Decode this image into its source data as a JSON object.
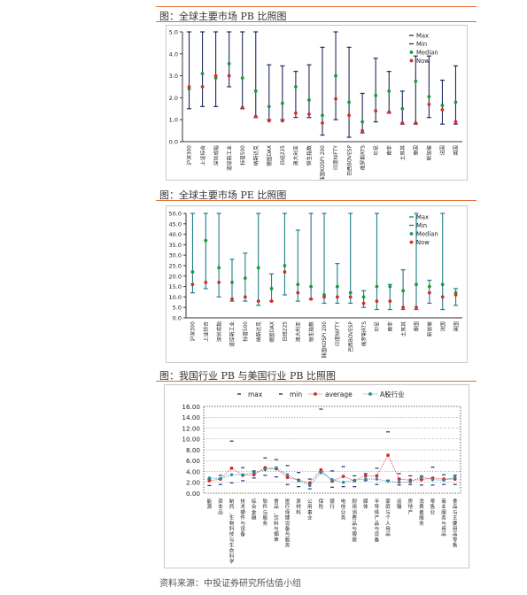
{
  "titles": {
    "pb_global": "图：全球主要市场 PB 比照图",
    "pe_global": "图：全球主要市场 PE 比照图",
    "cn_us_pb": "图：我国行业 PB 与美国行业 PB 比照图"
  },
  "source": "资料来源：中投证券研究所估值小组",
  "colors": {
    "accent_rule": "#e26b3a",
    "pb_whisker": "#1f2a5c",
    "pe_whisker": "#1f7d8c",
    "median": "#1a9a3a",
    "now": "#d42b2b",
    "ind_max_min": "#1f2a8c",
    "ind_average": "#d42b2b",
    "ind_a": "#2a8a9a"
  },
  "chart_data": [
    {
      "id": "pb",
      "type": "box",
      "title": "图：全球主要市场 PB 比照图",
      "categories": [
        "沪深300",
        "上证综合",
        "深圳成指",
        "道琼斯工业",
        "标普500",
        "纳斯达克",
        "德国DAX",
        "日经225",
        "澳大利亚",
        "恒生指数",
        "韩国KOSPI 200",
        "印度NIFTY",
        "巴西BOVESP",
        "俄罗斯RTS",
        "印尼",
        "南非",
        "土耳其",
        "泰国",
        "新加坡",
        "法国",
        "英国"
      ],
      "legend": [
        "Max",
        "Min",
        "Median",
        "Now"
      ],
      "ylim": [
        0,
        5
      ],
      "yticks": [
        "0.0",
        "1.0",
        "2.0",
        "3.0",
        "4.0",
        "5.0"
      ],
      "series": [
        {
          "name": "Max",
          "values": [
            5.0,
            5.0,
            5.0,
            5.0,
            5.0,
            5.0,
            3.5,
            3.45,
            3.2,
            3.5,
            4.3,
            5.0,
            4.3,
            2.2,
            3.8,
            3.2,
            2.3,
            3.9,
            3.9,
            2.8,
            3.45
          ]
        },
        {
          "name": "Min",
          "values": [
            1.5,
            1.6,
            1.6,
            2.5,
            1.5,
            1.1,
            1.0,
            1.0,
            1.1,
            1.1,
            0.3,
            1.0,
            0.2,
            0.4,
            0.9,
            1.3,
            0.8,
            0.8,
            1.1,
            0.8,
            0.8
          ]
        },
        {
          "name": "Median",
          "values": [
            2.4,
            3.1,
            2.9,
            3.55,
            2.9,
            2.3,
            1.6,
            1.75,
            2.5,
            1.9,
            1.2,
            3.0,
            1.8,
            0.9,
            2.1,
            2.3,
            1.5,
            2.75,
            2.05,
            1.65,
            1.8
          ]
        },
        {
          "name": "Now",
          "values": [
            2.5,
            2.5,
            3.0,
            3.0,
            1.55,
            1.15,
            0.95,
            0.95,
            1.3,
            1.25,
            0.85,
            1.95,
            1.2,
            0.5,
            1.4,
            1.35,
            0.85,
            0.85,
            1.7,
            1.45,
            0.9
          ]
        }
      ]
    },
    {
      "id": "pe",
      "type": "box",
      "title": "图：全球主要市场 PE 比照图",
      "categories": [
        "沪深300",
        "上证综合",
        "深圳成指",
        "道琼斯工业",
        "标普500",
        "纳斯达克",
        "德国DAX",
        "日经225",
        "澳大利亚",
        "恒生指数",
        "韩国KOSPI 200",
        "印度NIFTY",
        "巴西BOVESP",
        "俄罗斯RTS",
        "印尼",
        "南非",
        "土耳其",
        "泰国",
        "新加坡",
        "法国",
        "英国"
      ],
      "legend": [
        "Max",
        "Min",
        "Median",
        "Now"
      ],
      "ylim": [
        0,
        50
      ],
      "yticks": [
        "0.0",
        "5.0",
        "10.0",
        "15.0",
        "20.0",
        "25.0",
        "30.0",
        "35.0",
        "40.0",
        "45.0",
        "50.0"
      ],
      "series": [
        {
          "name": "Max",
          "values": [
            50,
            50,
            50,
            28,
            31,
            50,
            21,
            50,
            42,
            50,
            50,
            26,
            50,
            13,
            50,
            16,
            23,
            50,
            18,
            50,
            14
          ]
        },
        {
          "name": "Min",
          "values": [
            12,
            14,
            10,
            8,
            8,
            6,
            8,
            11,
            8,
            9,
            7,
            7,
            7,
            5,
            4,
            4,
            4,
            4,
            7,
            4,
            6
          ]
        },
        {
          "name": "Median",
          "values": [
            22,
            37,
            24,
            17,
            19,
            24,
            14,
            25,
            16,
            15,
            11,
            15,
            12,
            10,
            15,
            15,
            13,
            16,
            15,
            16,
            12
          ]
        },
        {
          "name": "Now",
          "values": [
            16,
            17,
            17,
            9,
            10,
            8,
            8,
            22,
            12,
            9,
            10,
            10,
            10,
            7,
            8,
            8,
            5,
            5,
            12,
            10,
            11
          ]
        }
      ]
    },
    {
      "id": "industry",
      "type": "line",
      "title": "图：我国行业 PB 与美国行业 PB 比照图",
      "categories": [
        "能源",
        "资本品",
        "制药、生物科技与生命科学",
        "技术硬件与设备",
        "综合金融",
        "软件与服务",
        "食品、饮料与烟草",
        "医疗保健设备与服务",
        "原材料",
        "公用事业",
        "保险",
        "银行",
        "电信业务",
        "耐用消费品与服装",
        "媒体",
        "半导体产品与设备",
        "家庭与个人用品",
        "运输",
        "房地产",
        "消费者服务",
        "零售业",
        "商业服务与用品",
        "食品与主要用品零售"
      ],
      "x_label_shown": [
        "能源",
        "资本品",
        "制药、生物科技与生命科学",
        "技术硬件与设备",
        "综合金融",
        "软件与服务",
        "食品、饮料与烟草",
        "医疗保健设备与服务",
        "原材料",
        "公用事业",
        "保险",
        "银行",
        "电信业务",
        "耐用消费品与服装",
        "媒体",
        "半导体产品与设备",
        "家庭与个人用品",
        "运输",
        "房地产",
        "消费者服务",
        "零售业",
        "商业服务与用品",
        "食品与主要用品零售"
      ],
      "legend": [
        "max",
        "min",
        "average",
        "A股行业"
      ],
      "ylim": [
        0,
        16
      ],
      "yticks": [
        "0.00",
        "2.00",
        "4.00",
        "6.00",
        "8.00",
        "10.00",
        "12.00",
        "14.00",
        "16.00"
      ],
      "grid": true,
      "series": [
        {
          "name": "max",
          "values": [
            2.6,
            3.3,
            9.6,
            4.7,
            4.1,
            6.5,
            6.2,
            5.1,
            3.8,
            2.6,
            15.5,
            4.1,
            4.9,
            3.2,
            3.6,
            4.6,
            11.3,
            3.6,
            3.2,
            3.2,
            4.8,
            3.4,
            3.3
          ]
        },
        {
          "name": "min",
          "values": [
            1.4,
            1.6,
            1.9,
            2.3,
            2.8,
            3.3,
            3.0,
            1.6,
            1.2,
            0.8,
            3.9,
            1.1,
            1.2,
            1.2,
            2.3,
            1.6,
            2.4,
            1.5,
            1.6,
            1.5,
            1.5,
            1.6,
            1.6
          ]
        },
        {
          "name": "average",
          "values": [
            2.3,
            2.6,
            4.6,
            3.3,
            3.4,
            4.7,
            4.5,
            2.9,
            2.4,
            1.9,
            4.3,
            2.2,
            3.1,
            2.3,
            3.2,
            3.2,
            7.0,
            2.6,
            2.4,
            2.5,
            2.8,
            2.6,
            2.6
          ]
        },
        {
          "name": "A股行业",
          "values": [
            2.8,
            2.7,
            3.4,
            3.4,
            3.8,
            4.3,
            4.7,
            3.4,
            2.3,
            1.4,
            3.8,
            2.5,
            2.0,
            2.4,
            2.6,
            2.6,
            2.2,
            2.0,
            2.1,
            3.0,
            2.5,
            2.4,
            2.9
          ]
        }
      ]
    }
  ]
}
